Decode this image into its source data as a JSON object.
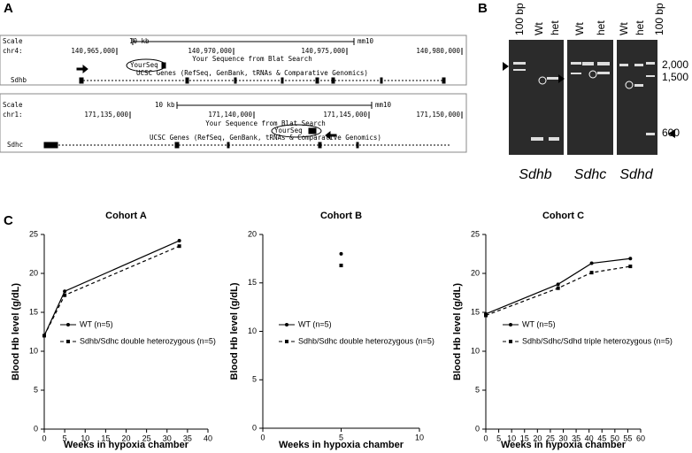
{
  "panel_a": {
    "label": "A",
    "tracks": [
      {
        "scale": "Scale",
        "scale_bar": "10 kb",
        "assembly": "mm10",
        "chrom": "chr4:",
        "positions": [
          "140,965,000",
          "140,970,000",
          "140,975,000",
          "140,980,000"
        ],
        "blat_track": "Your Sequence from Blat Search",
        "query": "YourSeq",
        "genes_track": "UCSC Genes (RefSeq, GenBank, tRNAs & Comparative Genomics)",
        "gene": "Sdhb"
      },
      {
        "scale": "Scale",
        "scale_bar": "10 kb",
        "assembly": "mm10",
        "chrom": "chr1:",
        "positions": [
          "171,135,000",
          "171,140,000",
          "171,145,000",
          "171,150,000"
        ],
        "blat_track": "Your Sequence from Blat Search",
        "query": "YourSeq",
        "genes_track": "UCSC Genes (RefSeq, GenBank, tRNAs & Comparative Genomics)",
        "gene": "Sdhc"
      }
    ]
  },
  "panel_b": {
    "label": "B",
    "lanes": [
      "100 bp",
      "Wt",
      "het",
      "Wt",
      "het",
      "Wt",
      "het",
      "100 bp"
    ],
    "sizes": [
      "2,000",
      "1,500",
      "600"
    ],
    "genes": [
      "Sdhb",
      "Sdhc",
      "Sdhd"
    ]
  },
  "panel_c": {
    "label": "C"
  },
  "chart_data": [
    {
      "type": "line",
      "title": "Cohort  A",
      "x_label": "Weeks in hypoxia chamber",
      "y_label": "Blood Hb level  (g/dL)",
      "xlim": [
        0,
        40
      ],
      "xticks": [
        0,
        5,
        10,
        15,
        20,
        25,
        30,
        35,
        40
      ],
      "ylim": [
        0,
        25
      ],
      "yticks": [
        0,
        5,
        10,
        15,
        20,
        25
      ],
      "series": [
        {
          "name": "WT (n=5)",
          "color": "#000000",
          "dash": false,
          "marker": "circle",
          "x": [
            0,
            5,
            33
          ],
          "values": [
            12,
            17.7,
            24.2
          ]
        },
        {
          "name": "Sdhb/Sdhc double heterozygous (n=5)",
          "color": "#000000",
          "dash": true,
          "marker": "square",
          "x": [
            0,
            5,
            33
          ],
          "values": [
            12,
            17.2,
            23.5
          ]
        }
      ]
    },
    {
      "type": "line",
      "title": "Cohort  B",
      "x_label": "Weeks in hypoxia chamber",
      "y_label": "Blood Hb level  (g/dL)",
      "xlim": [
        0,
        10
      ],
      "xticks": [
        0,
        5,
        10
      ],
      "ylim": [
        0,
        20
      ],
      "yticks": [
        0,
        5,
        10,
        15,
        20
      ],
      "series": [
        {
          "name": "WT (n=5)",
          "color": "#000000",
          "dash": false,
          "marker": "circle",
          "x": [
            5
          ],
          "values": [
            18
          ]
        },
        {
          "name": "Sdhb/Sdhc double heterozygous (n=5)",
          "color": "#000000",
          "dash": true,
          "marker": "square",
          "x": [
            5
          ],
          "values": [
            16.8
          ]
        }
      ]
    },
    {
      "type": "line",
      "title": "Cohort  C",
      "x_label": "Weeks in hypoxia chamber",
      "y_label": "Blood Hb level  (g/dL)",
      "xlim": [
        0,
        60
      ],
      "xticks": [
        0,
        5,
        10,
        15,
        20,
        25,
        30,
        35,
        40,
        45,
        50,
        55,
        60
      ],
      "ylim": [
        0,
        25
      ],
      "yticks": [
        0,
        5,
        10,
        15,
        20,
        25
      ],
      "series": [
        {
          "name": "WT (n=5)",
          "color": "#000000",
          "dash": false,
          "marker": "circle",
          "x": [
            0,
            28,
            41,
            56
          ],
          "values": [
            14.8,
            18.6,
            21.3,
            21.9
          ]
        },
        {
          "name": "Sdhb/Sdhc/Sdhd triple heterozygous (n=5)",
          "color": "#000000",
          "dash": true,
          "marker": "square",
          "x": [
            0,
            28,
            41,
            56
          ],
          "values": [
            14.6,
            18.1,
            20.1,
            20.9
          ]
        }
      ]
    }
  ]
}
